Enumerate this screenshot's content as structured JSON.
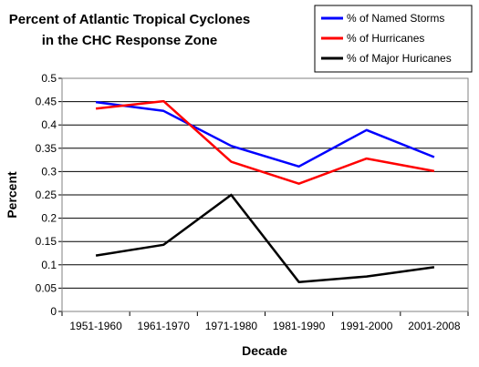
{
  "chart_data": {
    "type": "line",
    "title_lines": [
      "Percent of Atlantic Tropical Cyclones",
      "in the CHC Response Zone"
    ],
    "xlabel": "Decade",
    "ylabel": "Percent",
    "ylim": [
      0,
      0.5
    ],
    "yticks": [
      0,
      0.05,
      0.1,
      0.15,
      0.2,
      0.25,
      0.3,
      0.35,
      0.4,
      0.45,
      0.5
    ],
    "ytick_labels": [
      "0",
      "0.05",
      "0.1",
      "0.15",
      "0.2",
      "0.25",
      "0.3",
      "0.35",
      "0.4",
      "0.45",
      "0.5"
    ],
    "grid": "horizontal",
    "legend_position": "top-right",
    "categories": [
      "1951-1960",
      "1961-1970",
      "1971-1980",
      "1981-1990",
      "1991-2000",
      "2001-2008"
    ],
    "series": [
      {
        "name": "% of Named Storms",
        "color": "#0000ff",
        "values": [
          0.449,
          0.43,
          0.355,
          0.311,
          0.389,
          0.331
        ]
      },
      {
        "name": "% of Hurricanes",
        "color": "#ff0000",
        "values": [
          0.435,
          0.451,
          0.321,
          0.274,
          0.328,
          0.301
        ]
      },
      {
        "name": "% of Major Huricanes",
        "color": "#000000",
        "values": [
          0.12,
          0.143,
          0.25,
          0.063,
          0.075,
          0.095
        ]
      }
    ]
  }
}
